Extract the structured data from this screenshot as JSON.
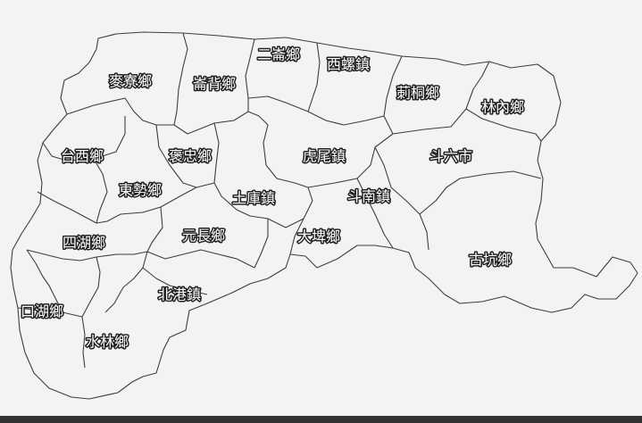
{
  "colors": {
    "gradient_top": "#4a7ee6",
    "gradient_upper_mid": "#9fc2e8",
    "gradient_mid": "#c9e7b0",
    "gradient_lower_mid": "#e6f06c",
    "gradient_bottom": "#b9f20c",
    "border": "#3e3e3e",
    "label_fill": "#ffffff",
    "label_outline": "#222222",
    "background": "#f1f4f3"
  },
  "regions": [
    {
      "id": "ershuei",
      "name": "二崙鄉"
    },
    {
      "id": "xiluo",
      "name": "西螺鎮"
    },
    {
      "id": "mailiao",
      "name": "麥寮鄉"
    },
    {
      "id": "lunbei",
      "name": "崙背鄉"
    },
    {
      "id": "citong",
      "name": "莿桐鄉"
    },
    {
      "id": "linnei",
      "name": "林內鄉"
    },
    {
      "id": "taixi",
      "name": "台西鄉"
    },
    {
      "id": "baozhong",
      "name": "褒忠鄉"
    },
    {
      "id": "huwei",
      "name": "虎尾鎮"
    },
    {
      "id": "douliu",
      "name": "斗六市"
    },
    {
      "id": "dongshi",
      "name": "東勢鄉"
    },
    {
      "id": "tuku",
      "name": "土庫鎮"
    },
    {
      "id": "dounan",
      "name": "斗南鎮"
    },
    {
      "id": "sihu",
      "name": "四湖鄉"
    },
    {
      "id": "yuanchang",
      "name": "元長鄉"
    },
    {
      "id": "dapi",
      "name": "大埤鄉"
    },
    {
      "id": "gukeng",
      "name": "古坑鄉"
    },
    {
      "id": "beigang",
      "name": "北港鎮"
    },
    {
      "id": "kouhu",
      "name": "口湖鄉"
    },
    {
      "id": "shuilin",
      "name": "水林鄉"
    }
  ]
}
